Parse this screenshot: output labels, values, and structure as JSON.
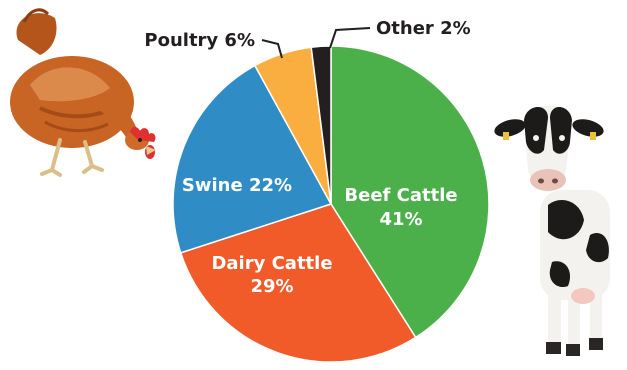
{
  "chart_data": {
    "type": "pie",
    "slices": [
      {
        "label": "Beef Cattle",
        "value": 41,
        "percent_text": "41%",
        "color": "#4bb04a"
      },
      {
        "label": "Dairy Cattle",
        "value": 29,
        "percent_text": "29%",
        "color": "#f15a29"
      },
      {
        "label": "Swine",
        "value": 22,
        "percent_text": "22%",
        "color": "#2f8cc4"
      },
      {
        "label": "Poultry",
        "value": 6,
        "percent_text": "6%",
        "color": "#f9ae3f"
      },
      {
        "label": "Other",
        "value": 2,
        "percent_text": "2%",
        "color": "#231f20"
      }
    ]
  },
  "labels": {
    "beef": "Beef Cattle",
    "beef_pct": "41%",
    "dairy": "Dairy Cattle",
    "dairy_pct": "29%",
    "swine": "Swine 22%",
    "poultry": "Poultry 6%",
    "other": "Other 2%"
  },
  "icons": {
    "left": "chicken-image",
    "right": "cow-image"
  },
  "colors": {
    "label_inside": "#ffffff",
    "label_outside": "#231f20",
    "slice_border": "#ffffff"
  }
}
